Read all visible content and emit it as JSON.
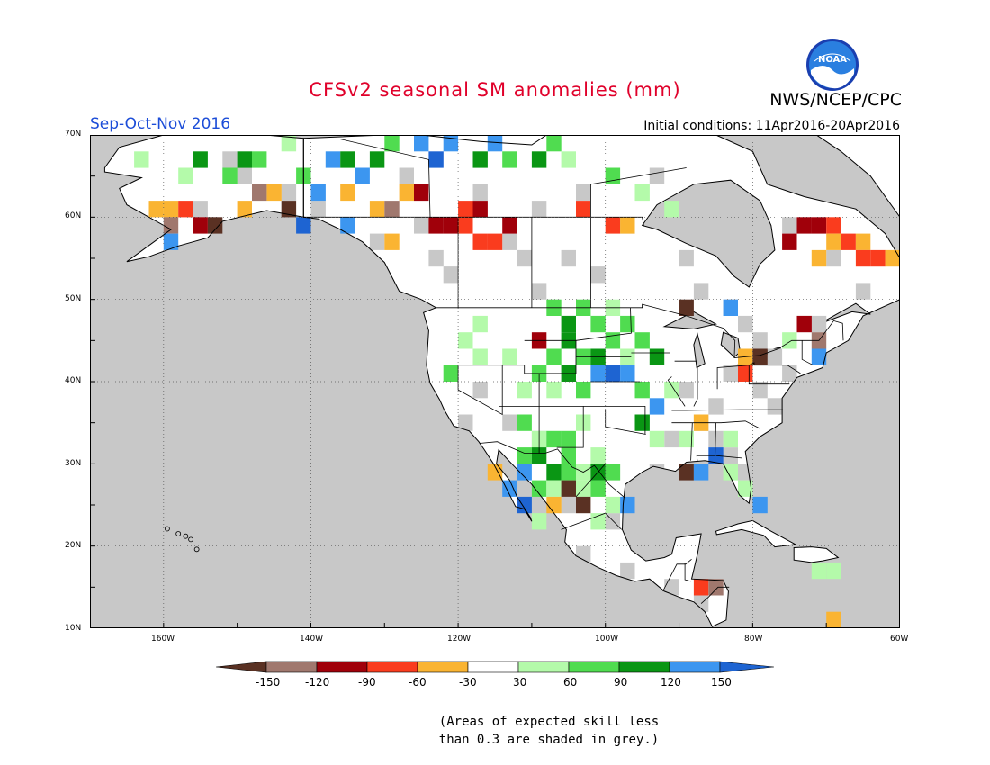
{
  "header": {
    "title": "CFSv2 seasonal SM anomalies (mm)",
    "agency": "NWS/NCEP/CPC",
    "logo_text": "NOAA",
    "season": "Sep-Oct-Nov 2016",
    "initial_conditions": "Initial conditions: 11Apr2016-20Apr2016"
  },
  "map": {
    "lat_labels": [
      "70N",
      "60N",
      "50N",
      "40N",
      "30N",
      "20N",
      "10N"
    ],
    "lon_labels": [
      "160W",
      "140W",
      "120W",
      "100W",
      "80W",
      "60W"
    ],
    "colors": {
      "grey": "#c8c8c8",
      "land": "#ffffff",
      "dark_brown": "#5a3123",
      "brown": "#a0786e",
      "dark_red": "#a0000a",
      "red_orange": "#fa3c1e",
      "orange": "#fab432",
      "white": "#ffffff",
      "light_green": "#b4faaa",
      "green": "#50dc50",
      "dark_green": "#0a9614",
      "blue": "#3c96f0",
      "dark_blue": "#1e64d2"
    }
  },
  "colorbar": {
    "labels": [
      "-150",
      "-120",
      "-90",
      "-60",
      "-30",
      "30",
      "60",
      "90",
      "120",
      "150"
    ],
    "colors": [
      "#5a3123",
      "#a0786e",
      "#a0000a",
      "#fa3c1e",
      "#fab432",
      "#ffffff",
      "#b4faaa",
      "#50dc50",
      "#0a9614",
      "#3c96f0",
      "#1e64d2"
    ]
  },
  "note": {
    "line1": "(Areas of expected skill less",
    "line2": "than 0.3 are shaded in grey.)"
  }
}
